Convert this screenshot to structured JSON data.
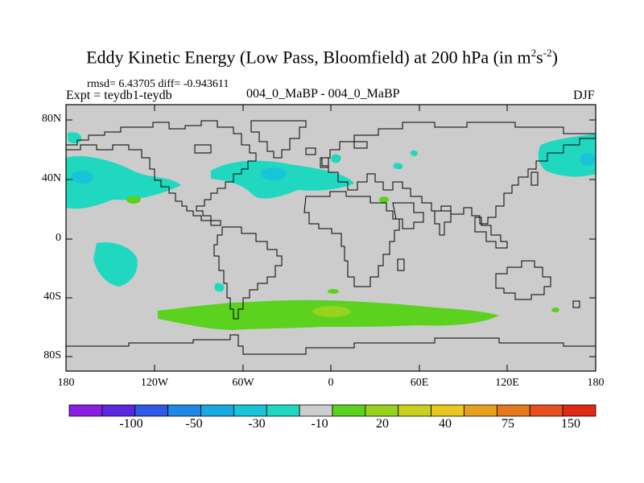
{
  "title": {
    "main": "Eddy Kinetic Energy (Low Pass, Bloomfield) at 200 hPa (in m",
    "sup1": "2",
    "mid": "s",
    "sup2": "-2",
    "end": ")"
  },
  "stats": "rmsd= 6.43705 diff= -0.943611",
  "expt": "Expt = teydb1-teydb",
  "center_label": "004_0_MaBP - 004_0_MaBP",
  "season": "DJF",
  "lat_labels": [
    "80N",
    "40N",
    "0",
    "40S",
    "80S"
  ],
  "lon_labels": [
    "180",
    "120W",
    "60W",
    "0",
    "60E",
    "120E",
    "180"
  ],
  "colorbar": {
    "colors": [
      "#8a1ee0",
      "#5a28e0",
      "#2e5ae6",
      "#1e88e6",
      "#1aa8e0",
      "#18c4d8",
      "#20d8c0",
      "#cccccc",
      "#5ad21e",
      "#96d21e",
      "#c8d21e",
      "#e6c81e",
      "#e6a01e",
      "#e6781e",
      "#e6501e",
      "#e02814"
    ],
    "labels": [
      "-100",
      "-50",
      "-30",
      "-10",
      "20",
      "40",
      "75",
      "150"
    ]
  },
  "colors": {
    "ocean_fill": "#cccccc",
    "positive_low": "#5ad21e",
    "positive_mid": "#96d21e",
    "negative_low": "#20d8c0",
    "negative_mid": "#18c4d8"
  }
}
